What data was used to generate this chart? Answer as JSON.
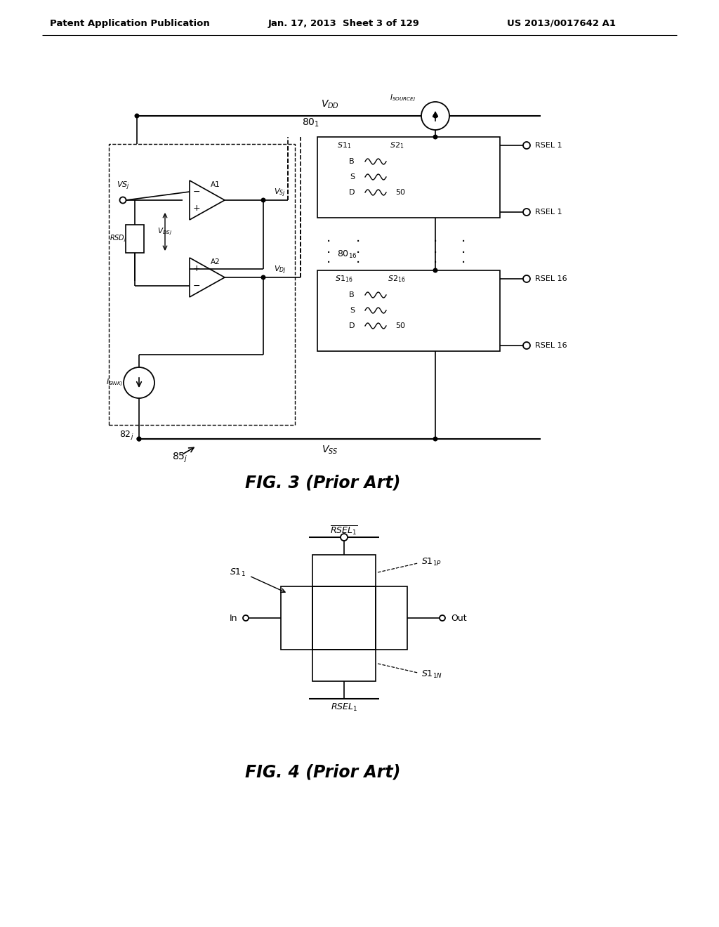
{
  "header_left": "Patent Application Publication",
  "header_mid": "Jan. 17, 2013  Sheet 3 of 129",
  "header_right": "US 2013/0017642 A1",
  "fig3_caption": "FIG. 3 (Prior Art)",
  "fig4_caption": "FIG. 4 (Prior Art)",
  "bg_color": "#ffffff",
  "line_color": "#000000"
}
